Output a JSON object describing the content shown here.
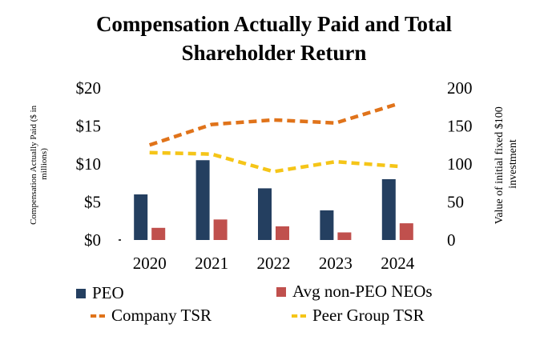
{
  "chart_data": {
    "type": "bar+line",
    "title_lines": [
      "Compensation Actually Paid and Total",
      "Shareholder Return"
    ],
    "categories": [
      "2020",
      "2021",
      "2022",
      "2023",
      "2024"
    ],
    "left_axis": {
      "label_lines": [
        "Compensation Actually Paid ($ in",
        "millions)"
      ],
      "range": [
        0,
        20
      ],
      "tick_labels": [
        "$0",
        "$5",
        "$10",
        "$15",
        "$20"
      ],
      "tick_values": [
        0,
        5,
        10,
        15,
        20
      ]
    },
    "right_axis": {
      "label_lines": [
        "Value of initial fixed $100",
        "investment"
      ],
      "range": [
        0,
        200
      ],
      "tick_labels": [
        "0",
        "50",
        "100",
        "150",
        "200"
      ],
      "tick_values": [
        0,
        50,
        100,
        150,
        200
      ]
    },
    "bar_series": [
      {
        "name": "PEO",
        "color": "#243f60",
        "axis": "left",
        "values": [
          6.0,
          10.5,
          6.8,
          3.9,
          8.0
        ]
      },
      {
        "name": "Avg non-PEO NEOs",
        "color": "#c0504d",
        "axis": "left",
        "values": [
          1.6,
          2.7,
          1.8,
          1.0,
          2.2
        ]
      }
    ],
    "line_series": [
      {
        "name": "Company TSR",
        "color": "#e0731a",
        "axis": "right",
        "values": [
          125,
          152,
          158,
          154,
          179
        ]
      },
      {
        "name": "Peer Group TSR",
        "color": "#f5c518",
        "axis": "right",
        "values": [
          115,
          113,
          90,
          103,
          97
        ]
      }
    ],
    "legend": [
      {
        "label": "PEO",
        "kind": "box",
        "color": "#243f60"
      },
      {
        "label": "Avg non-PEO NEOs",
        "kind": "box",
        "color": "#c0504d"
      },
      {
        "label": "Company TSR",
        "kind": "dash",
        "color": "#e0731a"
      },
      {
        "label": "Peer Group TSR",
        "kind": "dash",
        "color": "#f5c518"
      }
    ]
  }
}
